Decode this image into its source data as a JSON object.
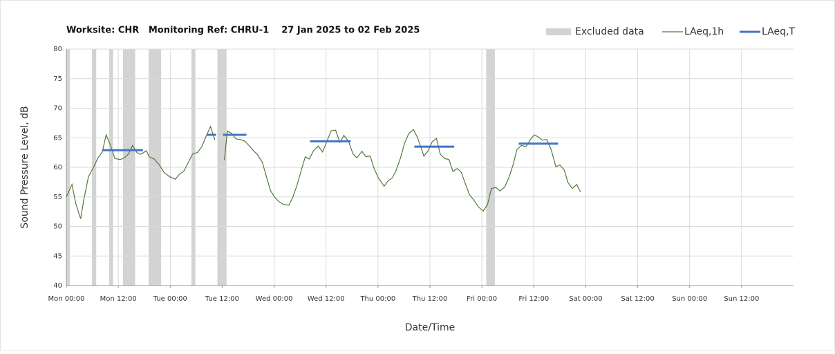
{
  "chart_data": {
    "type": "line",
    "title": "Worksite: CHR   Monitoring Ref: CHRU-1    27 Jan 2025 to 02 Feb 2025",
    "x_label": "Date/Time",
    "y_label": "Sound Pressure Level, dB",
    "xlim": [
      0,
      168
    ],
    "ylim": [
      40,
      80
    ],
    "yticks": [
      40,
      45,
      50,
      55,
      60,
      65,
      70,
      75,
      80
    ],
    "xticks": [
      {
        "value": 0,
        "label": "Mon 00:00"
      },
      {
        "value": 12,
        "label": "Mon 12:00"
      },
      {
        "value": 24,
        "label": "Tue 00:00"
      },
      {
        "value": 36,
        "label": "Tue 12:00"
      },
      {
        "value": 48,
        "label": "Wed 00:00"
      },
      {
        "value": 60,
        "label": "Wed 12:00"
      },
      {
        "value": 72,
        "label": "Thu 00:00"
      },
      {
        "value": 84,
        "label": "Thu 12:00"
      },
      {
        "value": 96,
        "label": "Fri 00:00"
      },
      {
        "value": 108,
        "label": "Fri 12:00"
      },
      {
        "value": 120,
        "label": "Sat 00:00"
      },
      {
        "value": 132,
        "label": "Sat 12:00"
      },
      {
        "value": 144,
        "label": "Sun 00:00"
      },
      {
        "value": 156,
        "label": "Sun 12:00"
      }
    ],
    "grid": true,
    "legend": "top-right",
    "excluded": {
      "name": "Excluded data",
      "color": "#d3d3d3",
      "ranges": [
        [
          0,
          0.8
        ],
        [
          5.9,
          6.9
        ],
        [
          9.9,
          10.8
        ],
        [
          13.1,
          15.9
        ],
        [
          19,
          21.9
        ],
        [
          28.9,
          29.8
        ],
        [
          34.9,
          37
        ],
        [
          97,
          99
        ]
      ]
    },
    "series": [
      {
        "name": "LAeq,1h",
        "color": "#4f7a3a",
        "x": [
          0,
          1.3,
          2.2,
          3.3,
          4,
          5.1,
          6.4,
          7.3,
          8.3,
          9.2,
          10.2,
          11.2,
          12.4,
          13.4,
          14.4,
          15.3,
          16.3,
          17.2,
          18.5,
          19.1,
          20.3,
          21.4,
          22.6,
          23.9,
          25.2,
          26.2,
          27.1,
          28.1,
          29.2,
          30.3,
          31.3,
          32.2,
          33.3,
          34.3,
          35.4,
          36.5,
          37.2,
          38.1,
          39.2,
          40.2,
          41.3,
          42.3,
          43.4,
          44.2,
          45.3,
          46.3,
          47.2,
          48.2,
          49.1,
          50.2,
          51.4,
          52.3,
          53.3,
          54.2,
          55.2,
          56.1,
          57.1,
          58.2,
          59.2,
          60.3,
          61.2,
          62.2,
          63.2,
          64.1,
          65.2,
          66.2,
          67.1,
          68.3,
          69.2,
          70.2,
          71.1,
          72.1,
          73.4,
          74.3,
          75.3,
          76.2,
          77.2,
          78.1,
          79.1,
          80.2,
          81.2,
          82.6,
          83.6,
          84.5,
          85.5,
          86.4,
          87.4,
          88.4,
          89.3,
          90.3,
          91.2,
          92.2,
          93.1,
          94.1,
          95.2,
          96.3,
          97.3,
          98.2,
          99.2,
          100.2,
          101.3,
          102.2,
          103.2,
          104.1,
          105.1,
          106.2,
          107.2,
          108.1,
          109.1,
          110,
          111,
          112,
          113.1,
          114,
          115,
          115.9,
          116.9,
          117.9,
          118.8
        ],
        "values": [
          55,
          57.1,
          53.8,
          51.3,
          54.4,
          58.4,
          60.2,
          61.6,
          62.6,
          65.5,
          63.7,
          61.5,
          61.3,
          61.6,
          62.3,
          63.7,
          62.5,
          62.2,
          62.8,
          61.8,
          61.4,
          60.5,
          59.1,
          58.4,
          58,
          58.9,
          59.3,
          60.7,
          62.3,
          62.5,
          63.5,
          65.1,
          66.9,
          64.6,
          null,
          61.2,
          66.1,
          65.8,
          64.8,
          64.7,
          64.4,
          63.6,
          62.7,
          62.1,
          60.8,
          58.2,
          56,
          54.9,
          54.2,
          53.7,
          53.6,
          54.9,
          57,
          59.3,
          61.8,
          61.4,
          62.8,
          63.6,
          62.6,
          64.6,
          66.2,
          66.3,
          64.2,
          65.4,
          64.4,
          62.3,
          61.6,
          62.7,
          61.8,
          61.9,
          59.8,
          58.2,
          56.8,
          57.7,
          58.2,
          59.5,
          61.6,
          64,
          65.7,
          66.4,
          64.9,
          61.9,
          62.8,
          64.3,
          64.9,
          62.2,
          61.5,
          61.3,
          59.3,
          59.8,
          59.2,
          57.2,
          55.4,
          54.5,
          53.3,
          52.6,
          53.7,
          56.4,
          56.6,
          56,
          56.7,
          58.2,
          60.4,
          63,
          63.7,
          63.5,
          64.7,
          65.5,
          65.1,
          64.6,
          64.7,
          63,
          60.1,
          60.4,
          59.6,
          57.4,
          56.4,
          57.1,
          55.8
        ]
      },
      {
        "name": "LAeq,T",
        "color": "#4472c4",
        "x_start": [
          8.3,
          32.4,
          36.2,
          56.3,
          80.4,
          104.5
        ],
        "x_end": [
          17.7,
          34.6,
          41.6,
          65.7,
          89.6,
          113.6
        ],
        "values": [
          62.9,
          65.5,
          65.5,
          64.4,
          63.5,
          64
        ]
      }
    ]
  }
}
